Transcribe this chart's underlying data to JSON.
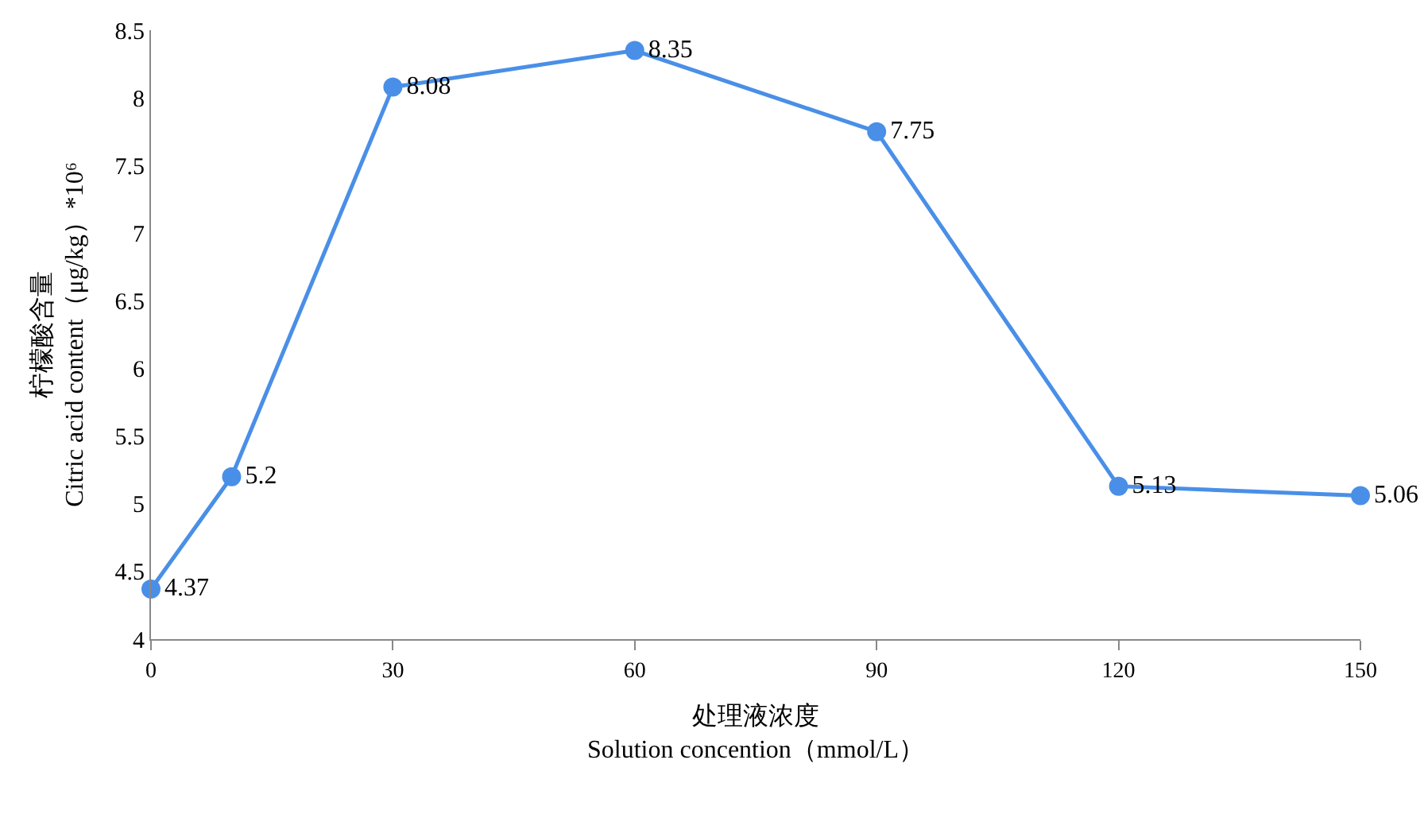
{
  "chart_data": {
    "type": "line",
    "xlabel": "处理液浓度\nSolution concention（mmol/L）",
    "ylabel": "柠檬酸含量\nCitric acid content（μg/kg）*10⁶",
    "x": [
      0,
      10,
      30,
      60,
      90,
      120,
      150
    ],
    "series": [
      {
        "color": "#4a8fe7",
        "values": [
          4.37,
          5.2,
          8.08,
          8.35,
          7.75,
          5.13,
          5.06
        ]
      }
    ],
    "xlim": [
      0,
      150
    ],
    "xticks": [
      0,
      30,
      60,
      90,
      120,
      150
    ],
    "ylim": [
      4,
      8.5
    ],
    "yticks": [
      4,
      4.5,
      5,
      5.5,
      6,
      6.5,
      7,
      7.5,
      8,
      8.5
    ],
    "data_labels": true,
    "marker": "circle",
    "line_style": "solid"
  }
}
